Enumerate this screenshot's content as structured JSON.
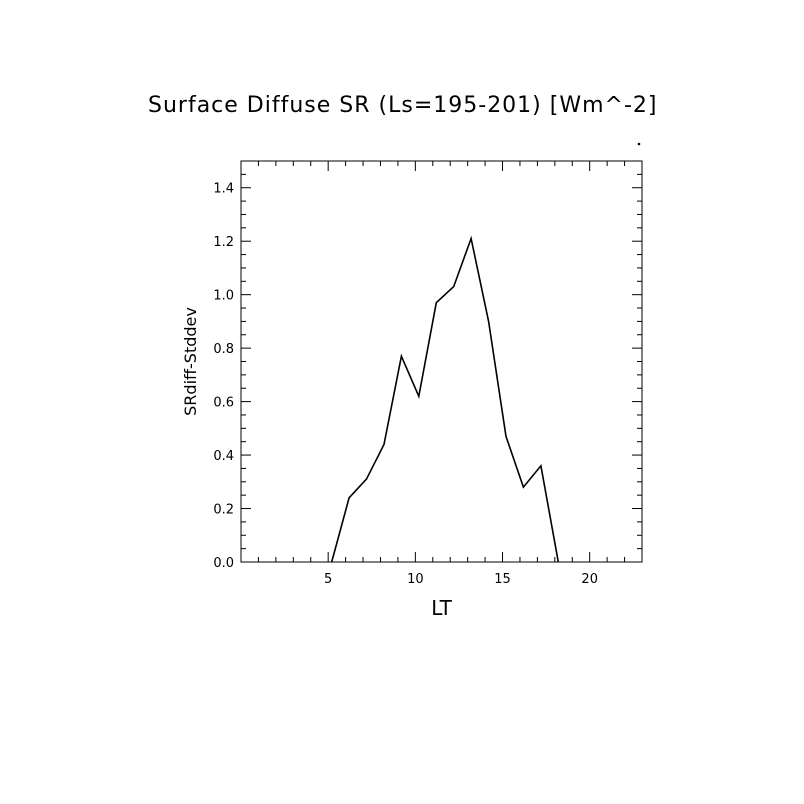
{
  "chart_data": {
    "type": "line",
    "title": "Surface Diffuse SR (Ls=195-201) [Wm^-2]",
    "xlabel": "LT",
    "ylabel": "SRdiff-Stddev",
    "xlim": [
      0,
      23
    ],
    "ylim": [
      0.0,
      1.5
    ],
    "x_ticks": [
      5,
      10,
      15,
      20
    ],
    "y_ticks": [
      0.0,
      0.2,
      0.4,
      0.6,
      0.8,
      1.0,
      1.2,
      1.4
    ],
    "x_tick_labels": [
      "5",
      "10",
      "15",
      "20"
    ],
    "y_tick_labels": [
      "0.0",
      "0.2",
      "0.4",
      "0.6",
      "0.8",
      "1.0",
      "1.2",
      "1.4"
    ],
    "grid": false,
    "series": [
      {
        "x": [
          5.2,
          6.2,
          7.2,
          8.2,
          9.2,
          10.2,
          11.2,
          12.2,
          13.2,
          14.2,
          15.2,
          16.2,
          17.2,
          18.2
        ],
        "y": [
          0.0,
          0.24,
          0.31,
          0.44,
          0.77,
          0.62,
          0.97,
          1.03,
          1.21,
          0.9,
          0.47,
          0.28,
          0.36,
          0.0
        ]
      }
    ],
    "colors": {
      "line": "#000000",
      "axes": "#000000",
      "background": "#ffffff"
    }
  }
}
